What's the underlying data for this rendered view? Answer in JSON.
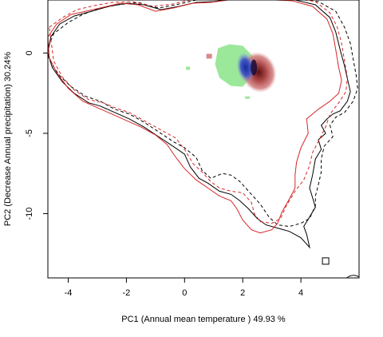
{
  "chart_data": {
    "type": "contour-density",
    "title": "",
    "xlabel": "PC1 (Annual mean temperature ) 49.93 %",
    "ylabel": "PC2 (Decrease Annual precipitation) 30.24%",
    "xlim": [
      -4.7,
      6.0
    ],
    "ylim": [
      -14.0,
      3.3
    ],
    "x_ticks": [
      -4,
      -2,
      0,
      2,
      4
    ],
    "y_ticks": [
      0,
      -5,
      -10
    ],
    "grid": false,
    "legend": "none",
    "colors": {
      "black_contour": "#000000",
      "red_contour": "#d62728",
      "green_cloud": "#9be89b",
      "red_cloud": "#c05555",
      "blue_core": "#2a3fb0"
    },
    "series": [
      {
        "style": "solid",
        "color": "black",
        "points": [
          [
            -4.7,
            0
          ],
          [
            -4.6,
            1.0
          ],
          [
            -4.3,
            1.8
          ],
          [
            -3.8,
            2.3
          ],
          [
            -3.2,
            2.6
          ],
          [
            -2.6,
            2.9
          ],
          [
            -2.0,
            3.1
          ],
          [
            -1.4,
            3.0
          ],
          [
            -0.8,
            2.7
          ],
          [
            -0.2,
            2.9
          ],
          [
            0.4,
            3.15
          ],
          [
            1.0,
            3.2
          ],
          [
            1.6,
            3.35
          ],
          [
            2.2,
            3.4
          ],
          [
            3.0,
            3.38
          ],
          [
            3.8,
            3.3
          ],
          [
            4.5,
            3.0
          ],
          [
            5.0,
            2.2
          ],
          [
            5.2,
            1.3
          ],
          [
            5.35,
            0.2
          ],
          [
            5.5,
            -0.8
          ],
          [
            5.6,
            -1.6
          ],
          [
            5.7,
            -2.4
          ],
          [
            5.6,
            -3.0
          ],
          [
            5.35,
            -3.6
          ],
          [
            5.1,
            -3.8
          ],
          [
            4.9,
            -4.1
          ],
          [
            4.7,
            -4.5
          ],
          [
            4.85,
            -5.0
          ],
          [
            4.6,
            -5.4
          ],
          [
            4.7,
            -6.0
          ],
          [
            4.5,
            -6.6
          ],
          [
            4.4,
            -7.6
          ],
          [
            4.3,
            -8.4
          ],
          [
            4.4,
            -9.0
          ],
          [
            4.5,
            -9.6
          ],
          [
            4.3,
            -10.2
          ],
          [
            4.1,
            -10.8
          ],
          [
            4.2,
            -11.3
          ],
          [
            4.3,
            -12.1
          ],
          [
            4.0,
            -11.5
          ],
          [
            3.6,
            -11.1
          ],
          [
            3.2,
            -10.9
          ],
          [
            2.8,
            -10.7
          ],
          [
            2.5,
            -10.3
          ],
          [
            2.2,
            -9.7
          ],
          [
            1.9,
            -9.2
          ],
          [
            1.6,
            -8.8
          ],
          [
            1.2,
            -8.6
          ],
          [
            0.8,
            -8.1
          ],
          [
            0.5,
            -7.8
          ],
          [
            0.2,
            -7.1
          ],
          [
            0.0,
            -6.3
          ],
          [
            -0.4,
            -5.8
          ],
          [
            -0.9,
            -5.2
          ],
          [
            -1.4,
            -4.6
          ],
          [
            -1.9,
            -4.1
          ],
          [
            -2.4,
            -3.7
          ],
          [
            -2.9,
            -3.3
          ],
          [
            -3.3,
            -3.1
          ],
          [
            -3.8,
            -2.5
          ],
          [
            -4.2,
            -1.8
          ],
          [
            -4.55,
            -0.9
          ],
          [
            -4.7,
            0
          ]
        ]
      },
      {
        "style": "dashed",
        "color": "black",
        "points": [
          [
            -4.75,
            0.1
          ],
          [
            -4.5,
            1.2
          ],
          [
            -4.0,
            1.9
          ],
          [
            -3.5,
            2.4
          ],
          [
            -2.9,
            2.8
          ],
          [
            -2.3,
            3.0
          ],
          [
            -1.6,
            3.15
          ],
          [
            -0.9,
            2.8
          ],
          [
            -0.3,
            3.0
          ],
          [
            0.4,
            3.3
          ],
          [
            1.0,
            3.3
          ],
          [
            1.7,
            3.45
          ],
          [
            2.3,
            3.5
          ],
          [
            3.1,
            3.45
          ],
          [
            3.9,
            3.35
          ],
          [
            4.6,
            3.2
          ],
          [
            5.2,
            2.6
          ],
          [
            5.5,
            1.6
          ],
          [
            5.7,
            0.6
          ],
          [
            5.8,
            -0.4
          ],
          [
            5.9,
            -1.4
          ],
          [
            5.95,
            -2.2
          ],
          [
            5.8,
            -3.0
          ],
          [
            5.5,
            -3.7
          ],
          [
            5.2,
            -4.0
          ],
          [
            5.0,
            -4.5
          ],
          [
            5.1,
            -5.2
          ],
          [
            4.8,
            -5.8
          ],
          [
            4.7,
            -6.6
          ],
          [
            4.7,
            -7.4
          ],
          [
            4.6,
            -8.2
          ],
          [
            4.5,
            -8.9
          ],
          [
            4.5,
            -9.5
          ],
          [
            4.3,
            -10.3
          ],
          [
            4.0,
            -10.6
          ],
          [
            3.6,
            -10.8
          ],
          [
            3.2,
            -10.7
          ],
          [
            2.9,
            -10.2
          ],
          [
            2.6,
            -9.4
          ],
          [
            2.2,
            -8.6
          ],
          [
            1.9,
            -8.0
          ],
          [
            1.6,
            -7.6
          ],
          [
            1.3,
            -7.5
          ],
          [
            0.9,
            -7.8
          ],
          [
            0.6,
            -7.3
          ],
          [
            0.4,
            -6.5
          ],
          [
            0.0,
            -5.9
          ],
          [
            -0.4,
            -5.5
          ],
          [
            -0.9,
            -4.9
          ],
          [
            -1.4,
            -4.3
          ],
          [
            -1.9,
            -3.8
          ],
          [
            -2.4,
            -3.5
          ],
          [
            -2.9,
            -3.0
          ],
          [
            -3.4,
            -2.7
          ],
          [
            -3.9,
            -2.1
          ],
          [
            -4.3,
            -1.4
          ],
          [
            -4.6,
            -0.6
          ],
          [
            -4.75,
            0.1
          ]
        ]
      },
      {
        "style": "solid",
        "color": "red",
        "points": [
          [
            -4.7,
            1.0
          ],
          [
            -4.4,
            1.8
          ],
          [
            -3.9,
            2.4
          ],
          [
            -3.4,
            2.6
          ],
          [
            -2.8,
            2.85
          ],
          [
            -2.2,
            3.1
          ],
          [
            -1.6,
            3.0
          ],
          [
            -1.0,
            2.6
          ],
          [
            -0.4,
            2.8
          ],
          [
            0.3,
            3.1
          ],
          [
            0.9,
            3.15
          ],
          [
            1.5,
            3.3
          ],
          [
            2.1,
            3.35
          ],
          [
            2.9,
            3.32
          ],
          [
            3.7,
            3.25
          ],
          [
            4.4,
            2.9
          ],
          [
            4.9,
            2.1
          ],
          [
            5.1,
            1.2
          ],
          [
            5.2,
            0.2
          ],
          [
            5.3,
            -0.9
          ],
          [
            5.4,
            -1.7
          ],
          [
            5.3,
            -2.5
          ],
          [
            5.0,
            -3.0
          ],
          [
            4.6,
            -3.5
          ],
          [
            4.2,
            -4.1
          ],
          [
            4.25,
            -5.0
          ],
          [
            4.0,
            -5.9
          ],
          [
            3.85,
            -6.8
          ],
          [
            3.8,
            -7.6
          ],
          [
            3.8,
            -8.4
          ],
          [
            3.6,
            -9.1
          ],
          [
            3.35,
            -9.9
          ],
          [
            3.2,
            -10.6
          ],
          [
            3.0,
            -11.0
          ],
          [
            2.6,
            -11.2
          ],
          [
            2.3,
            -11.0
          ],
          [
            2.0,
            -10.4
          ],
          [
            1.8,
            -9.7
          ],
          [
            1.6,
            -9.2
          ],
          [
            1.2,
            -8.9
          ],
          [
            0.8,
            -8.4
          ],
          [
            0.4,
            -7.9
          ],
          [
            0.0,
            -7.2
          ],
          [
            -0.3,
            -6.5
          ],
          [
            -0.6,
            -5.7
          ],
          [
            -1.0,
            -5.1
          ],
          [
            -1.5,
            -4.6
          ],
          [
            -2.0,
            -4.2
          ],
          [
            -2.5,
            -3.8
          ],
          [
            -3.0,
            -3.4
          ],
          [
            -3.5,
            -3.0
          ],
          [
            -4.0,
            -2.2
          ],
          [
            -4.4,
            -1.2
          ],
          [
            -4.65,
            -0.3
          ],
          [
            -4.7,
            1.0
          ]
        ]
      },
      {
        "style": "dashed",
        "color": "red",
        "points": [
          [
            -4.65,
            1.6
          ],
          [
            -4.2,
            2.2
          ],
          [
            -3.7,
            2.7
          ],
          [
            -3.1,
            2.95
          ],
          [
            -2.5,
            3.15
          ],
          [
            -1.8,
            3.2
          ],
          [
            -1.1,
            2.9
          ],
          [
            -0.4,
            3.05
          ],
          [
            0.3,
            3.35
          ],
          [
            1.0,
            3.35
          ],
          [
            1.6,
            3.45
          ],
          [
            2.2,
            3.5
          ],
          [
            3.0,
            3.48
          ],
          [
            3.8,
            3.42
          ],
          [
            4.5,
            3.2
          ],
          [
            5.0,
            2.5
          ],
          [
            5.25,
            1.6
          ],
          [
            5.4,
            0.6
          ],
          [
            5.5,
            -0.5
          ],
          [
            5.6,
            -1.5
          ],
          [
            5.55,
            -2.4
          ],
          [
            5.3,
            -3.1
          ],
          [
            5.0,
            -3.8
          ],
          [
            4.85,
            -4.6
          ],
          [
            4.6,
            -5.5
          ],
          [
            4.4,
            -6.2
          ],
          [
            4.3,
            -7.0
          ],
          [
            4.1,
            -7.9
          ],
          [
            3.8,
            -8.6
          ],
          [
            3.5,
            -9.5
          ],
          [
            3.3,
            -10.3
          ],
          [
            3.0,
            -10.6
          ],
          [
            2.6,
            -10.5
          ],
          [
            2.4,
            -10.0
          ],
          [
            2.3,
            -9.3
          ],
          [
            2.0,
            -8.7
          ],
          [
            1.6,
            -8.6
          ],
          [
            1.2,
            -8.4
          ],
          [
            0.9,
            -8.0
          ],
          [
            0.6,
            -7.4
          ],
          [
            0.3,
            -6.9
          ],
          [
            0.0,
            -6.0
          ],
          [
            -0.3,
            -5.3
          ],
          [
            -0.9,
            -4.7
          ],
          [
            -1.4,
            -4.2
          ],
          [
            -1.9,
            -3.7
          ],
          [
            -2.4,
            -3.4
          ],
          [
            -2.8,
            -3.1
          ],
          [
            -3.3,
            -2.9
          ],
          [
            -3.8,
            -2.3
          ],
          [
            -4.2,
            -1.5
          ],
          [
            -4.5,
            -0.5
          ],
          [
            -4.65,
            1.6
          ]
        ]
      }
    ],
    "markers": [
      {
        "type": "square-outline",
        "x": 4.85,
        "y": -12.95,
        "color": "black"
      },
      {
        "type": "arc-fragment",
        "x": 5.9,
        "y": -13.9,
        "color": "black"
      }
    ]
  }
}
